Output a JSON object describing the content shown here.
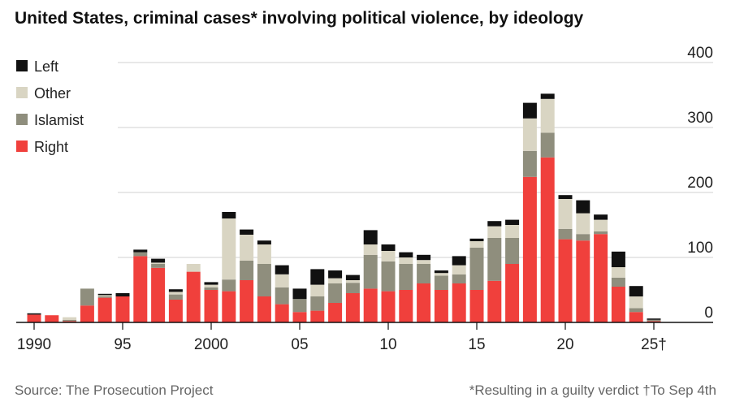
{
  "chart_data": {
    "type": "bar",
    "stacked": true,
    "title": "United States, criminal cases* involving political violence, by ideology",
    "source": "Source: The Prosecution Project",
    "footnote": "*Resulting in a guilty verdict †To Sep 4th",
    "ylim": [
      0,
      400
    ],
    "yticks": [
      "0",
      "100",
      "200",
      "300",
      "400"
    ],
    "grid": true,
    "legend_position": "top-left",
    "xtick_labels": [
      {
        "year": 1990,
        "label": "1990"
      },
      {
        "year": 1995,
        "label": "95"
      },
      {
        "year": 2000,
        "label": "2000"
      },
      {
        "year": 2005,
        "label": "05"
      },
      {
        "year": 2010,
        "label": "10"
      },
      {
        "year": 2015,
        "label": "15"
      },
      {
        "year": 2020,
        "label": "20"
      },
      {
        "year": 2025,
        "label": "25†"
      }
    ],
    "categories": [
      1990,
      1991,
      1992,
      1993,
      1994,
      1995,
      1996,
      1997,
      1998,
      1999,
      2000,
      2001,
      2002,
      2003,
      2004,
      2005,
      2006,
      2007,
      2008,
      2009,
      2010,
      2011,
      2012,
      2013,
      2014,
      2015,
      2016,
      2017,
      2018,
      2019,
      2020,
      2021,
      2022,
      2023,
      2024,
      2025
    ],
    "series": [
      {
        "name": "Right",
        "color": "#f0403c",
        "values": [
          12,
          11,
          2,
          26,
          38,
          40,
          102,
          84,
          35,
          78,
          50,
          48,
          65,
          40,
          28,
          16,
          18,
          30,
          45,
          52,
          48,
          50,
          60,
          50,
          60,
          50,
          64,
          90,
          224,
          254,
          128,
          126,
          136,
          55,
          16,
          2
        ]
      },
      {
        "name": "Islamist",
        "color": "#8f8e7d",
        "values": [
          0,
          0,
          2,
          26,
          2,
          0,
          6,
          6,
          8,
          0,
          4,
          18,
          30,
          50,
          26,
          20,
          22,
          30,
          16,
          52,
          46,
          40,
          30,
          22,
          14,
          65,
          66,
          40,
          40,
          38,
          16,
          10,
          4,
          14,
          6,
          2
        ]
      },
      {
        "name": "Other",
        "color": "#d9d5c3",
        "values": [
          0,
          0,
          4,
          0,
          2,
          0,
          0,
          2,
          4,
          12,
          4,
          94,
          40,
          30,
          20,
          0,
          18,
          8,
          4,
          16,
          16,
          10,
          6,
          4,
          14,
          10,
          18,
          20,
          50,
          52,
          46,
          32,
          18,
          16,
          18,
          0
        ]
      },
      {
        "name": "Left",
        "color": "#111111",
        "values": [
          2,
          0,
          0,
          0,
          2,
          5,
          4,
          6,
          4,
          0,
          4,
          10,
          8,
          6,
          14,
          16,
          24,
          12,
          8,
          22,
          10,
          8,
          8,
          4,
          14,
          4,
          8,
          8,
          24,
          8,
          6,
          20,
          8,
          24,
          16,
          2
        ]
      }
    ]
  }
}
